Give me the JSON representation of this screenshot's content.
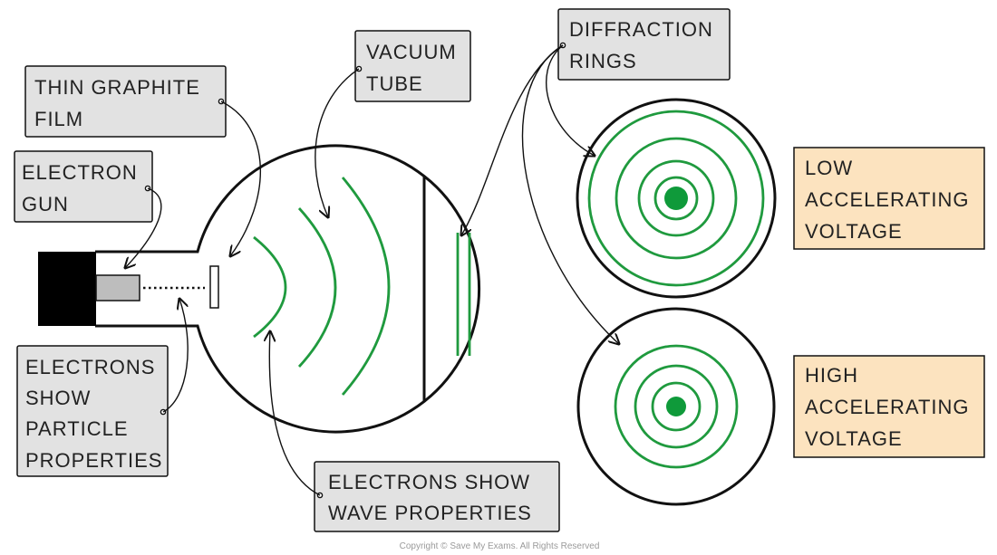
{
  "labels": {
    "thin_graphite_film": [
      "THIN  GRAPHITE",
      "FILM"
    ],
    "electron_gun": [
      "ELECTRON",
      "GUN"
    ],
    "vacuum_tube": [
      "VACUUM",
      "TUBE"
    ],
    "diffraction_rings": [
      "DIFFRACTION",
      "RINGS"
    ],
    "electrons_particle": [
      "ELECTRONS",
      "SHOW",
      "PARTICLE",
      "PROPERTIES"
    ],
    "electrons_wave": [
      "ELECTRONS  SHOW",
      "WAVE  PROPERTIES"
    ],
    "low_voltage": [
      "LOW",
      "ACCELERATING",
      "VOLTAGE"
    ],
    "high_voltage": [
      "HIGH",
      "ACCELERATING",
      "VOLTAGE"
    ]
  },
  "copyright": "Copyright © Save My Exams. All Rights Reserved",
  "colors": {
    "ring_green": "#1f9a3e",
    "dot_green": "#0f9a3a",
    "grey_box": "#e2e2e2",
    "orange_box": "#fce3bf",
    "line": "#111111"
  }
}
